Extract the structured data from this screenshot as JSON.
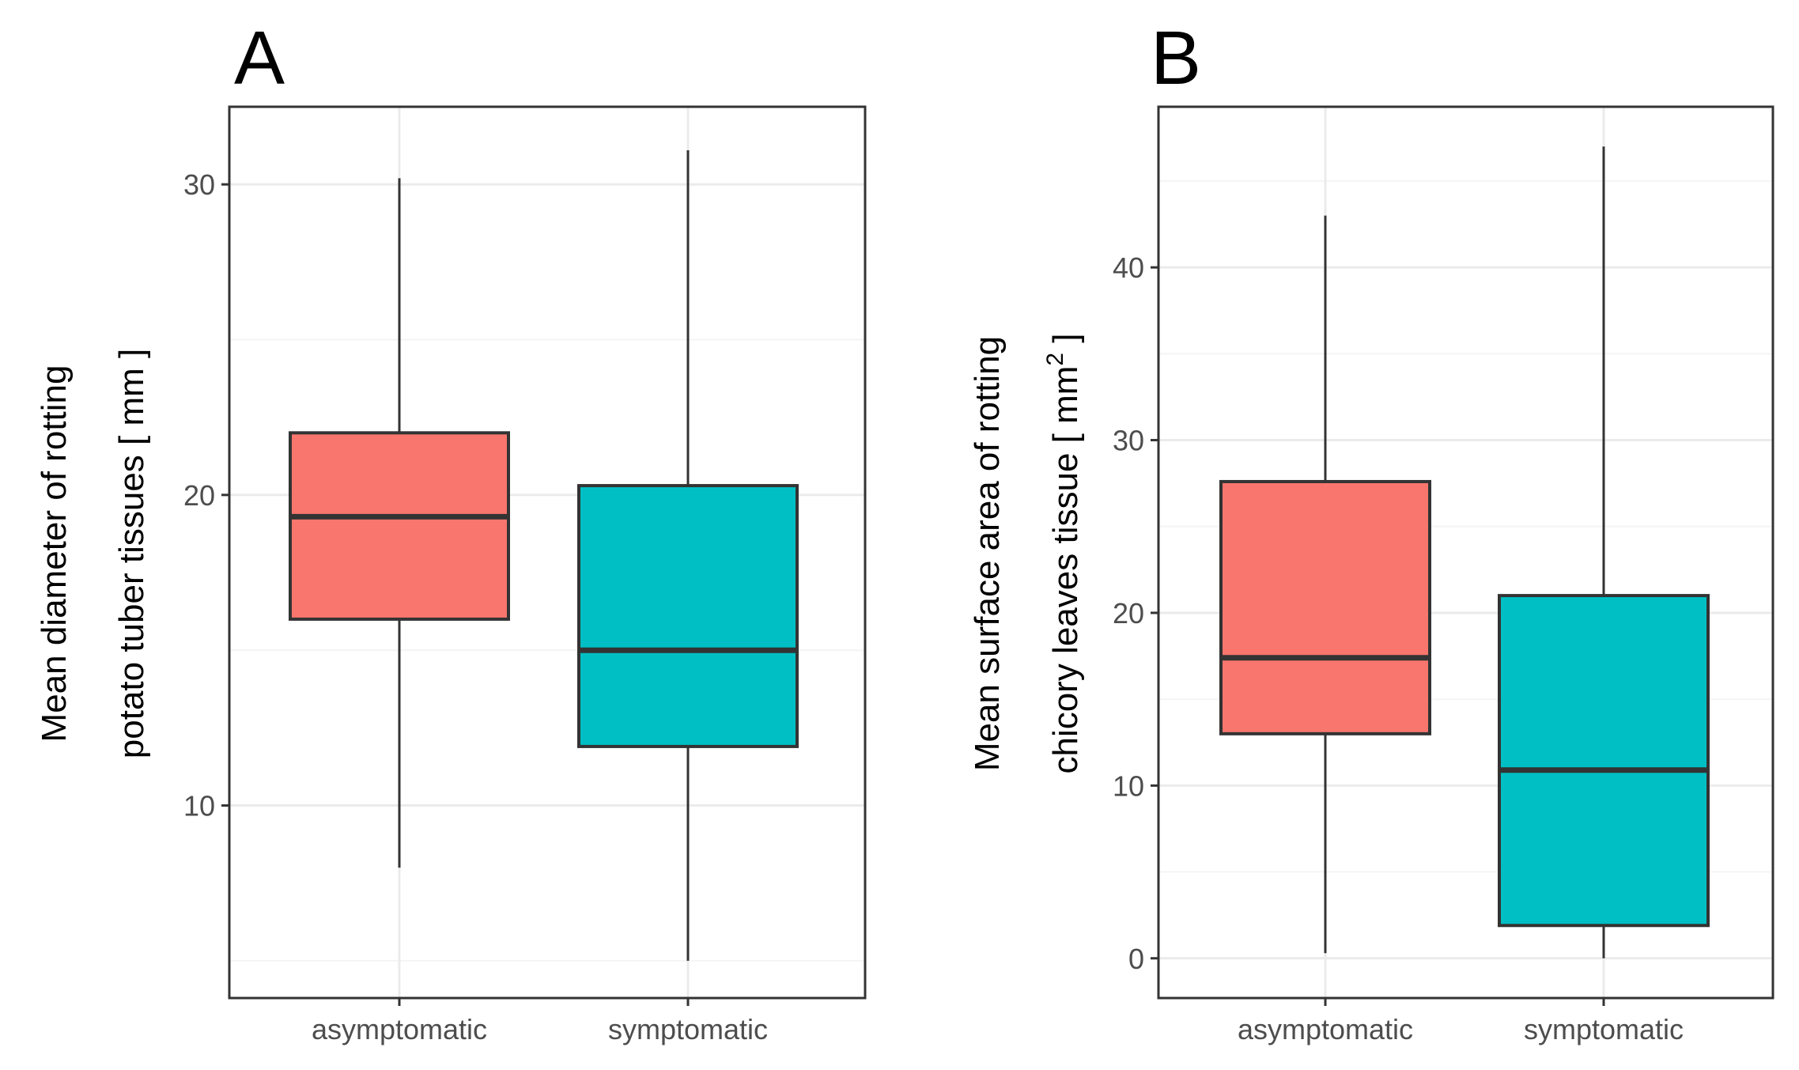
{
  "chart_data": [
    {
      "type": "boxplot",
      "panel_label": "A",
      "categories": [
        "asymptomatic",
        "symptomatic"
      ],
      "xlabel": "",
      "ylabel_lines": [
        "Mean diameter of rotting",
        "potato tuber tissues [ mm ]"
      ],
      "ylim": [
        3.8,
        32.5
      ],
      "yticks": [
        10,
        20,
        30
      ],
      "ytick_labels": [
        "10",
        "20",
        "30"
      ],
      "grid": true,
      "boxes": [
        {
          "category": "asymptomatic",
          "min": 8.0,
          "q1": 16.0,
          "median": 19.3,
          "q3": 22.0,
          "max": 30.2,
          "color": "#F8766D"
        },
        {
          "category": "symptomatic",
          "min": 5.0,
          "q1": 11.9,
          "median": 15.0,
          "q3": 20.3,
          "max": 31.1,
          "color": "#00BFC4"
        }
      ]
    },
    {
      "type": "boxplot",
      "panel_label": "B",
      "categories": [
        "asymptomatic",
        "symptomatic"
      ],
      "xlabel": "",
      "ylabel_lines": [
        "Mean surface area of rotting",
        "chicory leaves tissue [ mm",
        "2",
        " ]"
      ],
      "ylim": [
        -2.3,
        49.3
      ],
      "yticks": [
        0,
        10,
        20,
        30,
        40
      ],
      "ytick_labels": [
        "0",
        "10",
        "20",
        "30",
        "40"
      ],
      "grid": true,
      "boxes": [
        {
          "category": "asymptomatic",
          "min": 0.3,
          "q1": 13.0,
          "median": 17.4,
          "q3": 27.6,
          "max": 43.0,
          "color": "#F8766D"
        },
        {
          "category": "symptomatic",
          "min": 0.0,
          "q1": 1.9,
          "median": 10.9,
          "q3": 21.0,
          "max": 47.0,
          "color": "#00BFC4"
        }
      ]
    }
  ]
}
